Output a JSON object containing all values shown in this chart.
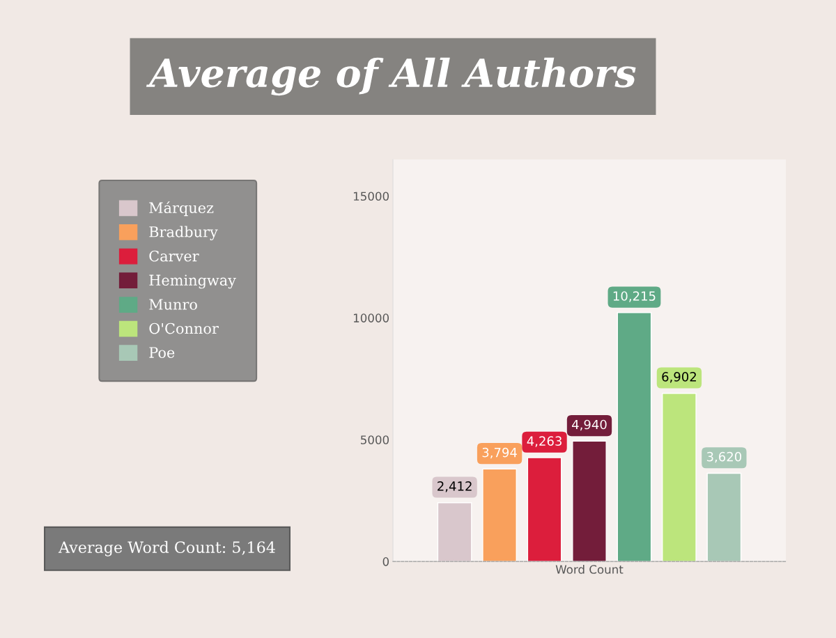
{
  "chart_data": {
    "type": "bar",
    "title": "Average of All Authors",
    "categories": [
      "Word Count"
    ],
    "series": [
      {
        "name": "Márquez",
        "color": "#d9c7cc",
        "values": [
          2412
        ],
        "value_labels": [
          "2,412"
        ]
      },
      {
        "name": "Bradbury",
        "color": "#f9a05c",
        "values": [
          3794
        ],
        "value_labels": [
          "3,794"
        ]
      },
      {
        "name": "Carver",
        "color": "#dc1e3c",
        "values": [
          4263
        ],
        "value_labels": [
          "4,263"
        ]
      },
      {
        "name": "Hemingway",
        "color": "#731d3a",
        "values": [
          4940
        ],
        "value_labels": [
          "4,940"
        ]
      },
      {
        "name": "Munro",
        "color": "#5faa86",
        "values": [
          10215
        ],
        "value_labels": [
          "10,215"
        ]
      },
      {
        "name": "O'Connor",
        "color": "#bce57c",
        "values": [
          6902
        ],
        "value_labels": [
          "6,902"
        ]
      },
      {
        "name": "Poe",
        "color": "#a8c8b6",
        "values": [
          3620
        ],
        "value_labels": [
          "3,620"
        ]
      }
    ],
    "ylim": [
      0,
      16500
    ],
    "yticks": [
      0,
      5000,
      10000,
      15000
    ],
    "annotations": [
      "Average Word Count: 5,164"
    ],
    "legend": "left",
    "grid": false
  }
}
